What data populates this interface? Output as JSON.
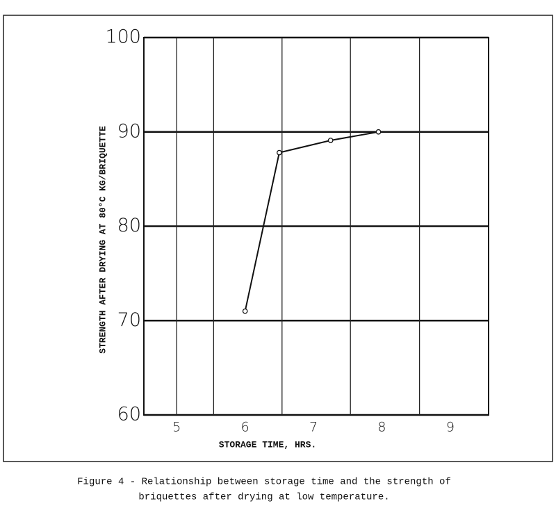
{
  "chart_data": {
    "type": "line",
    "x_label": "STORAGE TIME, HRS.",
    "y_label": "STRENGTH AFTER DRYING AT 80°C KG/BRIQUETTE",
    "caption": [
      "Figure 4 - Relationship between storage time and the strength of",
      "briquettes after drying at low temperature."
    ],
    "x": [
      6,
      6.5,
      7.25,
      7.95
    ],
    "series": [
      {
        "color": "#111111",
        "values": [
          71,
          87.8,
          89.1,
          90
        ]
      }
    ],
    "xlim": [
      4.52,
      9.56
    ],
    "xticks": [
      5,
      6,
      7,
      8,
      9
    ],
    "ylim": [
      60,
      100
    ],
    "yticks": [
      60,
      70,
      80,
      90,
      100
    ],
    "xgrid": [
      5,
      5.54,
      6.54,
      7.54,
      8.55
    ],
    "grid": true
  }
}
